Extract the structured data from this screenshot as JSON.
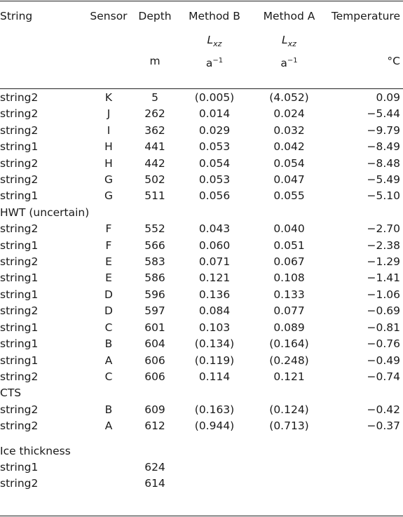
{
  "header": {
    "string": "String",
    "sensor": "Sensor",
    "depth": "Depth",
    "method_b": "Method B",
    "method_a": "Method A",
    "temperature": "Temperature",
    "lxz_symbol": "L",
    "lxz_sub": "xz",
    "depth_unit": "m",
    "rate_unit_base": "a",
    "rate_unit_exp": "−1",
    "temp_unit": "°C"
  },
  "rows": [
    {
      "string": "string2",
      "sensor": "K",
      "depth": "5",
      "method_b": "(0.005)",
      "method_a": "(4.052)",
      "temperature": "0.09"
    },
    {
      "string": "string2",
      "sensor": "J",
      "depth": "262",
      "method_b": "0.014",
      "method_a": "0.024",
      "temperature": "−5.44"
    },
    {
      "string": "string2",
      "sensor": "I",
      "depth": "362",
      "method_b": "0.029",
      "method_a": "0.032",
      "temperature": "−9.79"
    },
    {
      "string": "string1",
      "sensor": "H",
      "depth": "441",
      "method_b": "0.053",
      "method_a": "0.042",
      "temperature": "−8.49"
    },
    {
      "string": "string2",
      "sensor": "H",
      "depth": "442",
      "method_b": "0.054",
      "method_a": "0.054",
      "temperature": "−8.48"
    },
    {
      "string": "string2",
      "sensor": "G",
      "depth": "502",
      "method_b": "0.053",
      "method_a": "0.047",
      "temperature": "−5.49"
    },
    {
      "string": "string1",
      "sensor": "G",
      "depth": "511",
      "method_b": "0.056",
      "method_a": "0.055",
      "temperature": "−5.10"
    },
    {
      "group": "HWT (uncertain)"
    },
    {
      "string": "string2",
      "sensor": "F",
      "depth": "552",
      "method_b": "0.043",
      "method_a": "0.040",
      "temperature": "−2.70"
    },
    {
      "string": "string1",
      "sensor": "F",
      "depth": "566",
      "method_b": "0.060",
      "method_a": "0.051",
      "temperature": "−2.38"
    },
    {
      "string": "string2",
      "sensor": "E",
      "depth": "583",
      "method_b": "0.071",
      "method_a": "0.067",
      "temperature": "−1.29"
    },
    {
      "string": "string1",
      "sensor": "E",
      "depth": "586",
      "method_b": "0.121",
      "method_a": "0.108",
      "temperature": "−1.41"
    },
    {
      "string": "string1",
      "sensor": "D",
      "depth": "596",
      "method_b": "0.136",
      "method_a": "0.133",
      "temperature": "−1.06"
    },
    {
      "string": "string2",
      "sensor": "D",
      "depth": "597",
      "method_b": "0.084",
      "method_a": "0.077",
      "temperature": "−0.69"
    },
    {
      "string": "string1",
      "sensor": "C",
      "depth": "601",
      "method_b": "0.103",
      "method_a": "0.089",
      "temperature": "−0.81"
    },
    {
      "string": "string1",
      "sensor": "B",
      "depth": "604",
      "method_b": "(0.134)",
      "method_a": "(0.164)",
      "temperature": "−0.76"
    },
    {
      "string": "string1",
      "sensor": "A",
      "depth": "606",
      "method_b": "(0.119)",
      "method_a": "(0.248)",
      "temperature": "−0.49"
    },
    {
      "string": "string2",
      "sensor": "C",
      "depth": "606",
      "method_b": "0.114",
      "method_a": "0.121",
      "temperature": "−0.74"
    },
    {
      "group": "CTS"
    },
    {
      "string": "string2",
      "sensor": "B",
      "depth": "609",
      "method_b": "(0.163)",
      "method_a": "(0.124)",
      "temperature": "−0.42"
    },
    {
      "string": "string2",
      "sensor": "A",
      "depth": "612",
      "method_b": "(0.944)",
      "method_a": "(0.713)",
      "temperature": "−0.37"
    },
    {
      "group": "Ice thickness",
      "gap": true
    },
    {
      "string": "string1",
      "sensor": "",
      "depth": "624",
      "method_b": "",
      "method_a": "",
      "temperature": ""
    },
    {
      "string": "string2",
      "sensor": "",
      "depth": "614",
      "method_b": "",
      "method_a": "",
      "temperature": ""
    }
  ]
}
